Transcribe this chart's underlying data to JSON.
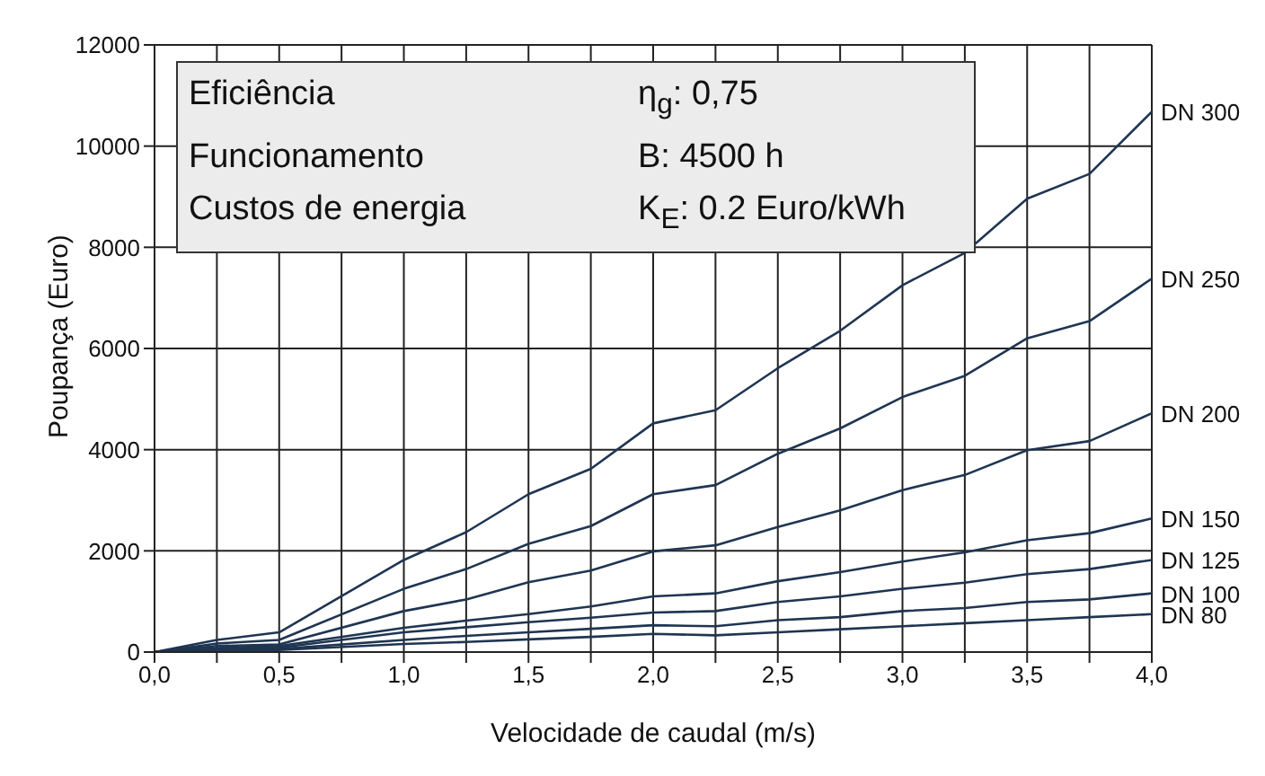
{
  "chart_data": {
    "type": "line",
    "xlabel": "Velocidade de caudal (m/s)",
    "ylabel": "Poupança (Euro)",
    "x": [
      0,
      0.25,
      0.5,
      1.0,
      1.25,
      1.5,
      1.75,
      2.0,
      2.25,
      2.5,
      2.75,
      3.0,
      3.25,
      3.5,
      3.75,
      4.0
    ],
    "series": [
      {
        "name": "DN 300",
        "color": "#1f3552",
        "values": [
          0,
          240,
          390,
          1820,
          2370,
          3120,
          3620,
          4520,
          4780,
          5610,
          6350,
          7250,
          7890,
          8960,
          9450,
          10680
        ]
      },
      {
        "name": "DN 250",
        "color": "#1f3552",
        "values": [
          0,
          170,
          240,
          1250,
          1640,
          2140,
          2490,
          3120,
          3300,
          3920,
          4420,
          5040,
          5460,
          6200,
          6540,
          7380
        ]
      },
      {
        "name": "DN 200",
        "color": "#1f3552",
        "values": [
          0,
          120,
          150,
          810,
          1040,
          1380,
          1610,
          1990,
          2110,
          2470,
          2800,
          3200,
          3500,
          3990,
          4170,
          4720
        ]
      },
      {
        "name": "DN 150",
        "color": "#1f3552",
        "values": [
          0,
          80,
          120,
          480,
          620,
          750,
          900,
          1100,
          1160,
          1400,
          1580,
          1790,
          1970,
          2210,
          2350,
          2640
        ]
      },
      {
        "name": "DN 125",
        "color": "#1f3552",
        "values": [
          0,
          60,
          90,
          390,
          490,
          590,
          680,
          780,
          810,
          990,
          1100,
          1250,
          1370,
          1540,
          1640,
          1820
        ]
      },
      {
        "name": "DN 100",
        "color": "#1f3552",
        "values": [
          0,
          40,
          60,
          240,
          320,
          390,
          460,
          530,
          510,
          630,
          690,
          810,
          870,
          990,
          1040,
          1160
        ]
      },
      {
        "name": "DN 80",
        "color": "#1f3552",
        "values": [
          0,
          30,
          40,
          160,
          200,
          250,
          300,
          360,
          330,
          390,
          450,
          510,
          570,
          630,
          690,
          750
        ]
      }
    ],
    "xlim": [
      0,
      4
    ],
    "xticks": [
      {
        "value": 0,
        "label": "0,0"
      },
      {
        "value": 0.25,
        "label": null
      },
      {
        "value": 0.5,
        "label": "0,5"
      },
      {
        "value": 0.75,
        "label": null
      },
      {
        "value": 1,
        "label": "1,0"
      },
      {
        "value": 1.25,
        "label": null
      },
      {
        "value": 1.5,
        "label": "1,5"
      },
      {
        "value": 1.75,
        "label": null
      },
      {
        "value": 2,
        "label": "2,0"
      },
      {
        "value": 2.25,
        "label": null
      },
      {
        "value": 2.5,
        "label": "2,5"
      },
      {
        "value": 2.75,
        "label": null
      },
      {
        "value": 3,
        "label": "3,0"
      },
      {
        "value": 3.25,
        "label": null
      },
      {
        "value": 3.5,
        "label": "3,5"
      },
      {
        "value": 3.75,
        "label": null
      },
      {
        "value": 4,
        "label": "4,0"
      }
    ],
    "ylim": [
      0,
      12000
    ],
    "yticks": [
      0,
      2000,
      4000,
      6000,
      8000,
      10000,
      12000
    ],
    "grid": true,
    "marker": "none",
    "line_style": "solid",
    "legend": false,
    "annotations": [
      "Eficiência",
      "η$_{g}$: 0,75",
      "Funcionamento",
      "B: 4500 h",
      "Custos de energia",
      "K$_{E}$: 0.2 Euro/kWh"
    ]
  }
}
